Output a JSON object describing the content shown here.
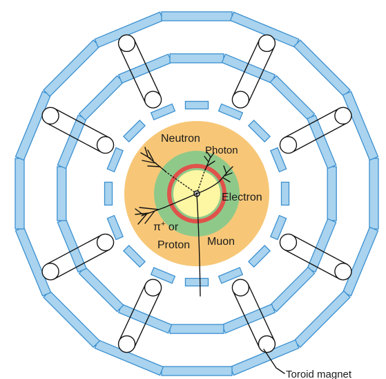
{
  "labels": {
    "neutron": "Neutron",
    "photon": "Photon",
    "electron": "Electron",
    "pion": "π",
    "pion_charge": "+",
    "or": " or",
    "proton": "Proton",
    "muon": "Muon",
    "toroid": "Toroid magnet"
  },
  "colors": {
    "magnet_fill": "#a9d3ee",
    "magnet_stroke": "#3a8fd0",
    "hadron_calorimeter": "#f7c777",
    "em_calorimeter": "#8fc98a",
    "solenoid": "#e0524a",
    "tracker": "#fdf6a2",
    "line": "#111111"
  },
  "icons": {
    "coil": "toroid-coil-icon",
    "shower": "particle-shower-icon"
  }
}
